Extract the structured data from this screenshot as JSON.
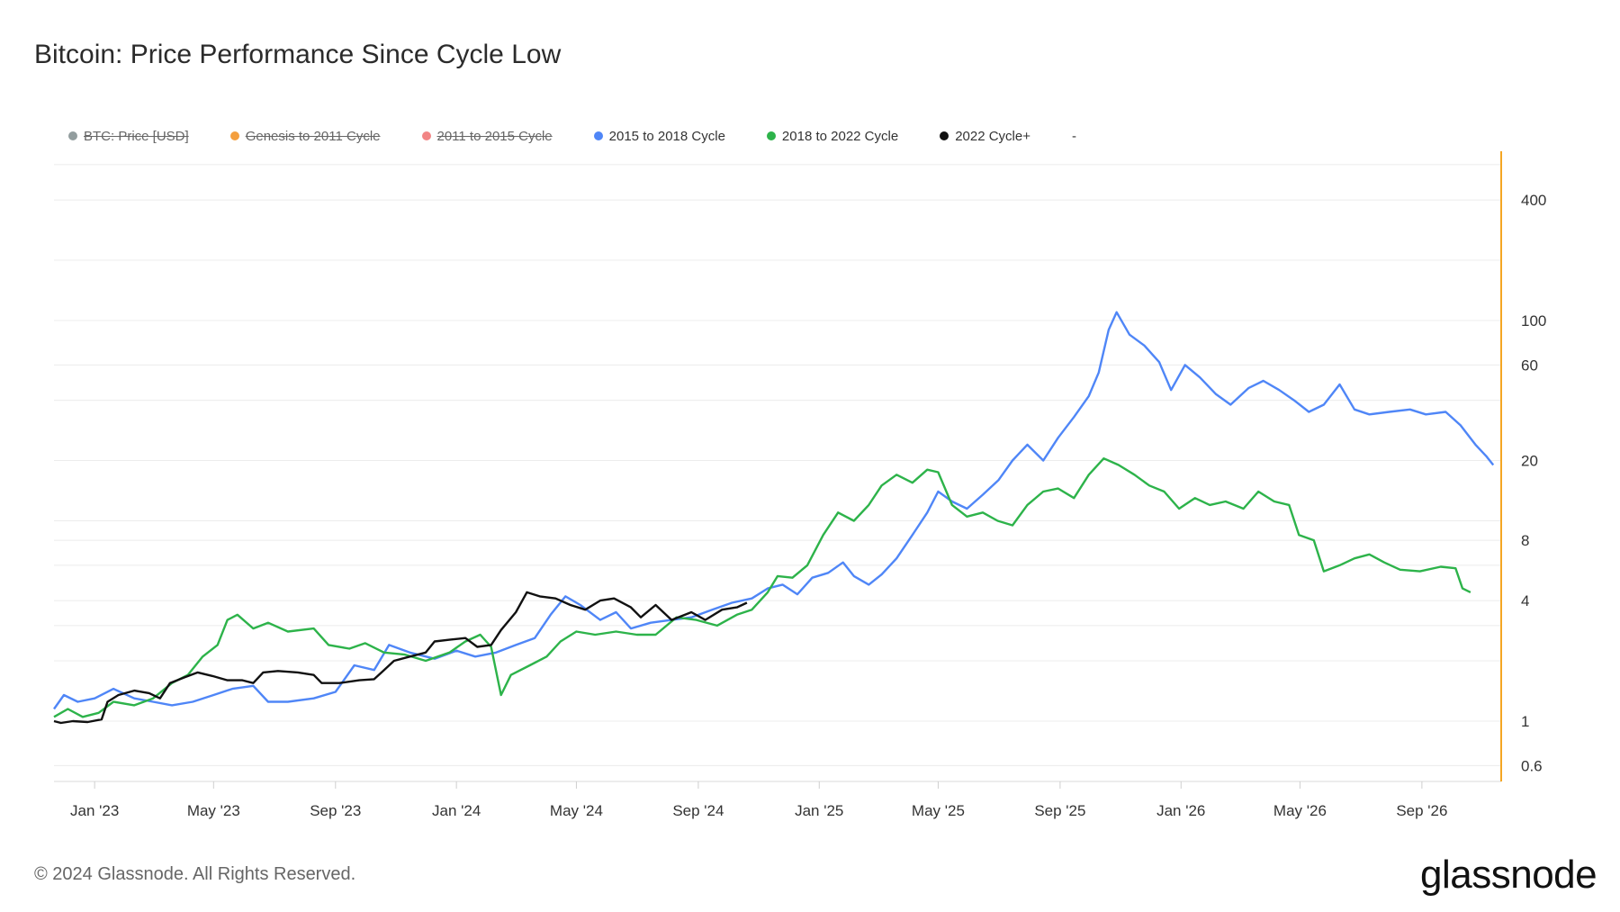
{
  "title": "Bitcoin: Price Performance Since Cycle Low",
  "legend": [
    {
      "label": "BTC: Price [USD]",
      "color": "#7f8c8d",
      "active": false
    },
    {
      "label": "Genesis to 2011 Cycle",
      "color": "#f28e1c",
      "active": false
    },
    {
      "label": "2011 to 2015 Cycle",
      "color": "#f07070",
      "active": false
    },
    {
      "label": "2015 to 2018 Cycle",
      "color": "#4f86f7",
      "active": true
    },
    {
      "label": "2018 to 2022 Cycle",
      "color": "#2db34a",
      "active": true
    },
    {
      "label": "2022 Cycle+",
      "color": "#111111",
      "active": true
    },
    {
      "label": "-",
      "color": "",
      "active": true
    }
  ],
  "footer": {
    "copyright": "© 2024 Glassnode. All Rights Reserved.",
    "brand": "glassnode"
  },
  "colors": {
    "axis_accent": "#f5a623",
    "grid": "#ececec"
  },
  "chart_data": {
    "type": "line",
    "title": "Bitcoin: Price Performance Since Cycle Low",
    "y_scale": "log",
    "ylim": [
      0.5,
      700
    ],
    "x_range": [
      "2022-11-21",
      "2026-11-20"
    ],
    "y_ticks": [
      "400",
      "100",
      "60",
      "20",
      "8",
      "4",
      "1",
      "0.6"
    ],
    "y_tick_values": [
      400,
      100,
      60,
      20,
      8,
      4,
      1,
      0.6
    ],
    "x_ticks": [
      "Jan '23",
      "May '23",
      "Sep '23",
      "Jan '24",
      "May '24",
      "Sep '24",
      "Jan '25",
      "May '25",
      "Sep '25",
      "Jan '26",
      "May '26",
      "Sep '26"
    ],
    "x_tick_dates": [
      "2023-01-01",
      "2023-05-01",
      "2023-09-01",
      "2024-01-01",
      "2024-05-01",
      "2024-09-01",
      "2025-01-01",
      "2025-05-01",
      "2025-09-01",
      "2026-01-01",
      "2026-05-01",
      "2026-09-01"
    ],
    "series": [
      {
        "name": "2015 to 2018 Cycle",
        "color": "#4f86f7",
        "points": [
          [
            "2022-11-21",
            1.15
          ],
          [
            "2022-12-01",
            1.35
          ],
          [
            "2022-12-15",
            1.25
          ],
          [
            "2023-01-01",
            1.3
          ],
          [
            "2023-01-20",
            1.45
          ],
          [
            "2023-02-10",
            1.3
          ],
          [
            "2023-03-01",
            1.25
          ],
          [
            "2023-03-20",
            1.2
          ],
          [
            "2023-04-10",
            1.25
          ],
          [
            "2023-05-01",
            1.35
          ],
          [
            "2023-05-20",
            1.45
          ],
          [
            "2023-06-10",
            1.5
          ],
          [
            "2023-06-25",
            1.25
          ],
          [
            "2023-07-15",
            1.25
          ],
          [
            "2023-08-10",
            1.3
          ],
          [
            "2023-09-01",
            1.4
          ],
          [
            "2023-09-20",
            1.9
          ],
          [
            "2023-10-10",
            1.8
          ],
          [
            "2023-10-25",
            2.4
          ],
          [
            "2023-11-15",
            2.2
          ],
          [
            "2023-12-10",
            2.05
          ],
          [
            "2024-01-01",
            2.25
          ],
          [
            "2024-01-20",
            2.1
          ],
          [
            "2024-02-10",
            2.2
          ],
          [
            "2024-03-01",
            2.4
          ],
          [
            "2024-03-20",
            2.6
          ],
          [
            "2024-04-05",
            3.4
          ],
          [
            "2024-04-20",
            4.2
          ],
          [
            "2024-05-05",
            3.8
          ],
          [
            "2024-05-25",
            3.2
          ],
          [
            "2024-06-10",
            3.5
          ],
          [
            "2024-06-25",
            2.9
          ],
          [
            "2024-07-15",
            3.1
          ],
          [
            "2024-08-05",
            3.2
          ],
          [
            "2024-08-25",
            3.3
          ],
          [
            "2024-09-15",
            3.6
          ],
          [
            "2024-10-05",
            3.9
          ],
          [
            "2024-10-25",
            4.1
          ],
          [
            "2024-11-10",
            4.6
          ],
          [
            "2024-11-25",
            4.8
          ],
          [
            "2024-12-10",
            4.3
          ],
          [
            "2024-12-25",
            5.2
          ],
          [
            "2025-01-10",
            5.5
          ],
          [
            "2025-01-25",
            6.2
          ],
          [
            "2025-02-05",
            5.3
          ],
          [
            "2025-02-20",
            4.8
          ],
          [
            "2025-03-05",
            5.4
          ],
          [
            "2025-03-20",
            6.5
          ],
          [
            "2025-04-05",
            8.5
          ],
          [
            "2025-04-20",
            11.0
          ],
          [
            "2025-05-01",
            14.0
          ],
          [
            "2025-05-15",
            12.5
          ],
          [
            "2025-05-30",
            11.5
          ],
          [
            "2025-06-15",
            13.5
          ],
          [
            "2025-07-01",
            16.0
          ],
          [
            "2025-07-15",
            20.0
          ],
          [
            "2025-07-30",
            24.0
          ],
          [
            "2025-08-15",
            20.0
          ],
          [
            "2025-08-30",
            26.0
          ],
          [
            "2025-09-15",
            33.0
          ],
          [
            "2025-09-30",
            42.0
          ],
          [
            "2025-10-10",
            55.0
          ],
          [
            "2025-10-20",
            90.0
          ],
          [
            "2025-10-28",
            110.0
          ],
          [
            "2025-11-10",
            85.0
          ],
          [
            "2025-11-25",
            75.0
          ],
          [
            "2025-12-10",
            62.0
          ],
          [
            "2025-12-22",
            45.0
          ],
          [
            "2026-01-05",
            60.0
          ],
          [
            "2026-01-20",
            52.0
          ],
          [
            "2026-02-05",
            43.0
          ],
          [
            "2026-02-20",
            38.0
          ],
          [
            "2026-03-10",
            46.0
          ],
          [
            "2026-03-25",
            50.0
          ],
          [
            "2026-04-10",
            45.0
          ],
          [
            "2026-04-25",
            40.0
          ],
          [
            "2026-05-10",
            35.0
          ],
          [
            "2026-05-25",
            38.0
          ],
          [
            "2026-06-10",
            48.0
          ],
          [
            "2026-06-25",
            36.0
          ],
          [
            "2026-07-10",
            34.0
          ],
          [
            "2026-07-30",
            35.0
          ],
          [
            "2026-08-20",
            36.0
          ],
          [
            "2026-09-05",
            34.0
          ],
          [
            "2026-09-25",
            35.0
          ],
          [
            "2026-10-10",
            30.0
          ],
          [
            "2026-10-25",
            24.0
          ],
          [
            "2026-11-05",
            21.0
          ],
          [
            "2026-11-12",
            19.0
          ]
        ]
      },
      {
        "name": "2018 to 2022 Cycle",
        "color": "#2db34a",
        "points": [
          [
            "2022-11-21",
            1.05
          ],
          [
            "2022-12-05",
            1.15
          ],
          [
            "2022-12-20",
            1.05
          ],
          [
            "2023-01-05",
            1.1
          ],
          [
            "2023-01-20",
            1.25
          ],
          [
            "2023-02-10",
            1.2
          ],
          [
            "2023-03-01",
            1.3
          ],
          [
            "2023-03-20",
            1.55
          ],
          [
            "2023-04-05",
            1.7
          ],
          [
            "2023-04-20",
            2.1
          ],
          [
            "2023-05-05",
            2.4
          ],
          [
            "2023-05-15",
            3.2
          ],
          [
            "2023-05-25",
            3.4
          ],
          [
            "2023-06-10",
            2.9
          ],
          [
            "2023-06-25",
            3.1
          ],
          [
            "2023-07-15",
            2.8
          ],
          [
            "2023-08-10",
            2.9
          ],
          [
            "2023-08-25",
            2.4
          ],
          [
            "2023-09-15",
            2.3
          ],
          [
            "2023-10-01",
            2.45
          ],
          [
            "2023-10-20",
            2.2
          ],
          [
            "2023-11-10",
            2.15
          ],
          [
            "2023-12-01",
            2.0
          ],
          [
            "2023-12-25",
            2.2
          ],
          [
            "2024-01-10",
            2.5
          ],
          [
            "2024-01-25",
            2.7
          ],
          [
            "2024-02-05",
            2.35
          ],
          [
            "2024-02-15",
            1.35
          ],
          [
            "2024-02-25",
            1.7
          ],
          [
            "2024-03-15",
            1.9
          ],
          [
            "2024-04-01",
            2.1
          ],
          [
            "2024-04-15",
            2.5
          ],
          [
            "2024-05-01",
            2.8
          ],
          [
            "2024-05-20",
            2.7
          ],
          [
            "2024-06-10",
            2.8
          ],
          [
            "2024-07-01",
            2.7
          ],
          [
            "2024-07-20",
            2.7
          ],
          [
            "2024-08-10",
            3.3
          ],
          [
            "2024-08-30",
            3.2
          ],
          [
            "2024-09-20",
            3.0
          ],
          [
            "2024-10-10",
            3.4
          ],
          [
            "2024-10-25",
            3.6
          ],
          [
            "2024-11-10",
            4.4
          ],
          [
            "2024-11-20",
            5.3
          ],
          [
            "2024-12-05",
            5.2
          ],
          [
            "2024-12-20",
            6.0
          ],
          [
            "2025-01-05",
            8.5
          ],
          [
            "2025-01-20",
            11.0
          ],
          [
            "2025-02-05",
            10.0
          ],
          [
            "2025-02-20",
            12.0
          ],
          [
            "2025-03-05",
            15.0
          ],
          [
            "2025-03-20",
            17.0
          ],
          [
            "2025-04-05",
            15.5
          ],
          [
            "2025-04-20",
            18.0
          ],
          [
            "2025-05-01",
            17.5
          ],
          [
            "2025-05-15",
            12.0
          ],
          [
            "2025-05-30",
            10.5
          ],
          [
            "2025-06-15",
            11.0
          ],
          [
            "2025-06-30",
            10.0
          ],
          [
            "2025-07-15",
            9.5
          ],
          [
            "2025-07-30",
            12.0
          ],
          [
            "2025-08-15",
            14.0
          ],
          [
            "2025-08-30",
            14.5
          ],
          [
            "2025-09-15",
            13.0
          ],
          [
            "2025-09-30",
            17.0
          ],
          [
            "2025-10-15",
            20.5
          ],
          [
            "2025-10-30",
            19.0
          ],
          [
            "2025-11-15",
            17.0
          ],
          [
            "2025-11-30",
            15.0
          ],
          [
            "2025-12-15",
            14.0
          ],
          [
            "2025-12-30",
            11.5
          ],
          [
            "2026-01-15",
            13.0
          ],
          [
            "2026-01-30",
            12.0
          ],
          [
            "2026-02-15",
            12.5
          ],
          [
            "2026-03-05",
            11.5
          ],
          [
            "2026-03-20",
            14.0
          ],
          [
            "2026-04-05",
            12.5
          ],
          [
            "2026-04-20",
            12.0
          ],
          [
            "2026-04-30",
            8.5
          ],
          [
            "2026-05-15",
            8.0
          ],
          [
            "2026-05-25",
            5.6
          ],
          [
            "2026-06-10",
            6.0
          ],
          [
            "2026-06-25",
            6.5
          ],
          [
            "2026-07-10",
            6.8
          ],
          [
            "2026-07-25",
            6.2
          ],
          [
            "2026-08-10",
            5.7
          ],
          [
            "2026-08-30",
            5.6
          ],
          [
            "2026-09-20",
            5.9
          ],
          [
            "2026-10-05",
            5.8
          ],
          [
            "2026-10-12",
            4.6
          ],
          [
            "2026-10-20",
            4.4
          ]
        ]
      },
      {
        "name": "2022 Cycle+",
        "color": "#111111",
        "points": [
          [
            "2022-11-21",
            1.0
          ],
          [
            "2022-11-28",
            0.98
          ],
          [
            "2022-12-10",
            1.0
          ],
          [
            "2022-12-25",
            0.99
          ],
          [
            "2023-01-08",
            1.02
          ],
          [
            "2023-01-14",
            1.25
          ],
          [
            "2023-01-25",
            1.35
          ],
          [
            "2023-02-10",
            1.42
          ],
          [
            "2023-02-25",
            1.38
          ],
          [
            "2023-03-08",
            1.3
          ],
          [
            "2023-03-18",
            1.55
          ],
          [
            "2023-04-01",
            1.65
          ],
          [
            "2023-04-15",
            1.75
          ],
          [
            "2023-04-30",
            1.68
          ],
          [
            "2023-05-15",
            1.6
          ],
          [
            "2023-05-30",
            1.6
          ],
          [
            "2023-06-10",
            1.55
          ],
          [
            "2023-06-20",
            1.75
          ],
          [
            "2023-07-05",
            1.78
          ],
          [
            "2023-07-25",
            1.75
          ],
          [
            "2023-08-10",
            1.7
          ],
          [
            "2023-08-18",
            1.55
          ],
          [
            "2023-09-05",
            1.55
          ],
          [
            "2023-09-25",
            1.6
          ],
          [
            "2023-10-10",
            1.62
          ],
          [
            "2023-10-20",
            1.8
          ],
          [
            "2023-10-30",
            2.0
          ],
          [
            "2023-11-15",
            2.1
          ],
          [
            "2023-12-01",
            2.2
          ],
          [
            "2023-12-10",
            2.5
          ],
          [
            "2023-12-25",
            2.55
          ],
          [
            "2024-01-10",
            2.6
          ],
          [
            "2024-01-22",
            2.35
          ],
          [
            "2024-02-05",
            2.4
          ],
          [
            "2024-02-15",
            2.85
          ],
          [
            "2024-03-01",
            3.5
          ],
          [
            "2024-03-12",
            4.4
          ],
          [
            "2024-03-25",
            4.2
          ],
          [
            "2024-04-10",
            4.1
          ],
          [
            "2024-04-25",
            3.8
          ],
          [
            "2024-05-10",
            3.6
          ],
          [
            "2024-05-25",
            4.0
          ],
          [
            "2024-06-08",
            4.1
          ],
          [
            "2024-06-25",
            3.7
          ],
          [
            "2024-07-05",
            3.3
          ],
          [
            "2024-07-20",
            3.8
          ],
          [
            "2024-08-05",
            3.2
          ],
          [
            "2024-08-25",
            3.5
          ],
          [
            "2024-09-08",
            3.2
          ],
          [
            "2024-09-25",
            3.6
          ],
          [
            "2024-10-10",
            3.7
          ],
          [
            "2024-10-20",
            3.9
          ]
        ]
      }
    ]
  }
}
